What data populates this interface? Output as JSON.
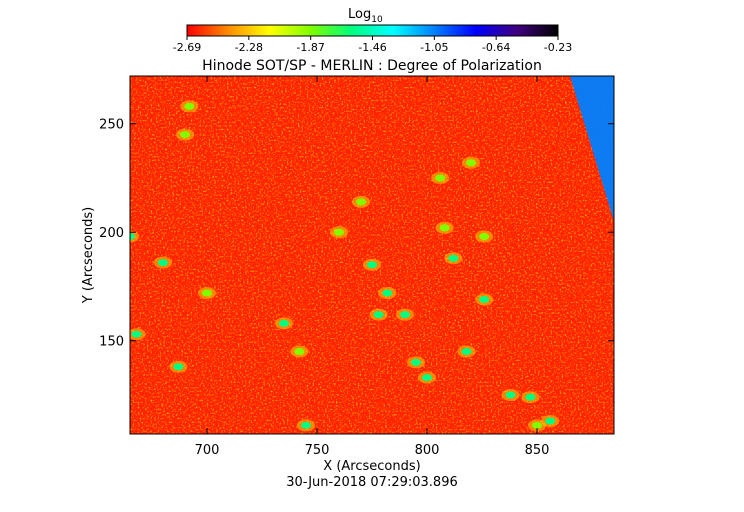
{
  "colorbar": {
    "label": "Log",
    "label_subscript": "10",
    "ticks": [
      "-2.69",
      "-2.28",
      "-1.87",
      "-1.46",
      "-1.05",
      "-0.64",
      "-0.23"
    ],
    "range": [
      -2.69,
      -0.23
    ],
    "colormap": [
      "#ff0000",
      "#ff8c00",
      "#ffff00",
      "#80ff00",
      "#00ff80",
      "#00ffff",
      "#0080ff",
      "#0000ff",
      "#400080",
      "#000000"
    ]
  },
  "title": "Hinode SOT/SP - MERLIN : Degree of Polarization",
  "timestamp": "30-Jun-2018 07:29:03.896",
  "chart_data": {
    "type": "heatmap",
    "title": "Hinode SOT/SP - MERLIN : Degree of Polarization",
    "xlabel": "X (Arcseconds)",
    "ylabel": "Y (Arcseconds)",
    "xlim": [
      665,
      885
    ],
    "ylim": [
      107,
      272
    ],
    "xticks": [
      700,
      750,
      800,
      850
    ],
    "yticks": [
      150,
      200,
      250
    ],
    "value_scale": "log10",
    "background_level": -2.69,
    "patches": [
      {
        "x": 665,
        "y": 198,
        "level": -1.6
      },
      {
        "x": 668,
        "y": 153,
        "level": -1.6
      },
      {
        "x": 680,
        "y": 186,
        "level": -1.7
      },
      {
        "x": 687,
        "y": 138,
        "level": -1.7
      },
      {
        "x": 692,
        "y": 258,
        "level": -1.9
      },
      {
        "x": 700,
        "y": 172,
        "level": -1.8
      },
      {
        "x": 735,
        "y": 158,
        "level": -1.7
      },
      {
        "x": 742,
        "y": 145,
        "level": -1.8
      },
      {
        "x": 745,
        "y": 111,
        "level": -1.6
      },
      {
        "x": 760,
        "y": 200,
        "level": -1.9
      },
      {
        "x": 770,
        "y": 214,
        "level": -2.0
      },
      {
        "x": 775,
        "y": 185,
        "level": -1.6
      },
      {
        "x": 782,
        "y": 172,
        "level": -1.5
      },
      {
        "x": 778,
        "y": 162,
        "level": -1.6
      },
      {
        "x": 790,
        "y": 162,
        "level": -1.6
      },
      {
        "x": 795,
        "y": 140,
        "level": -1.6
      },
      {
        "x": 800,
        "y": 133,
        "level": -1.7
      },
      {
        "x": 806,
        "y": 225,
        "level": -1.8
      },
      {
        "x": 808,
        "y": 202,
        "level": -1.8
      },
      {
        "x": 812,
        "y": 188,
        "level": -1.7
      },
      {
        "x": 818,
        "y": 145,
        "level": -1.6
      },
      {
        "x": 826,
        "y": 198,
        "level": -1.8
      },
      {
        "x": 826,
        "y": 169,
        "level": -1.7
      },
      {
        "x": 838,
        "y": 125,
        "level": -1.7
      },
      {
        "x": 847,
        "y": 124,
        "level": -1.7
      },
      {
        "x": 850,
        "y": 111,
        "level": -1.8
      },
      {
        "x": 856,
        "y": 113,
        "level": -1.6
      },
      {
        "x": 690,
        "y": 245,
        "level": -2.0
      },
      {
        "x": 820,
        "y": 232,
        "level": -2.0
      }
    ],
    "edge_region": {
      "description_level": -1.1,
      "x_from": 865,
      "y_from": 240
    }
  }
}
